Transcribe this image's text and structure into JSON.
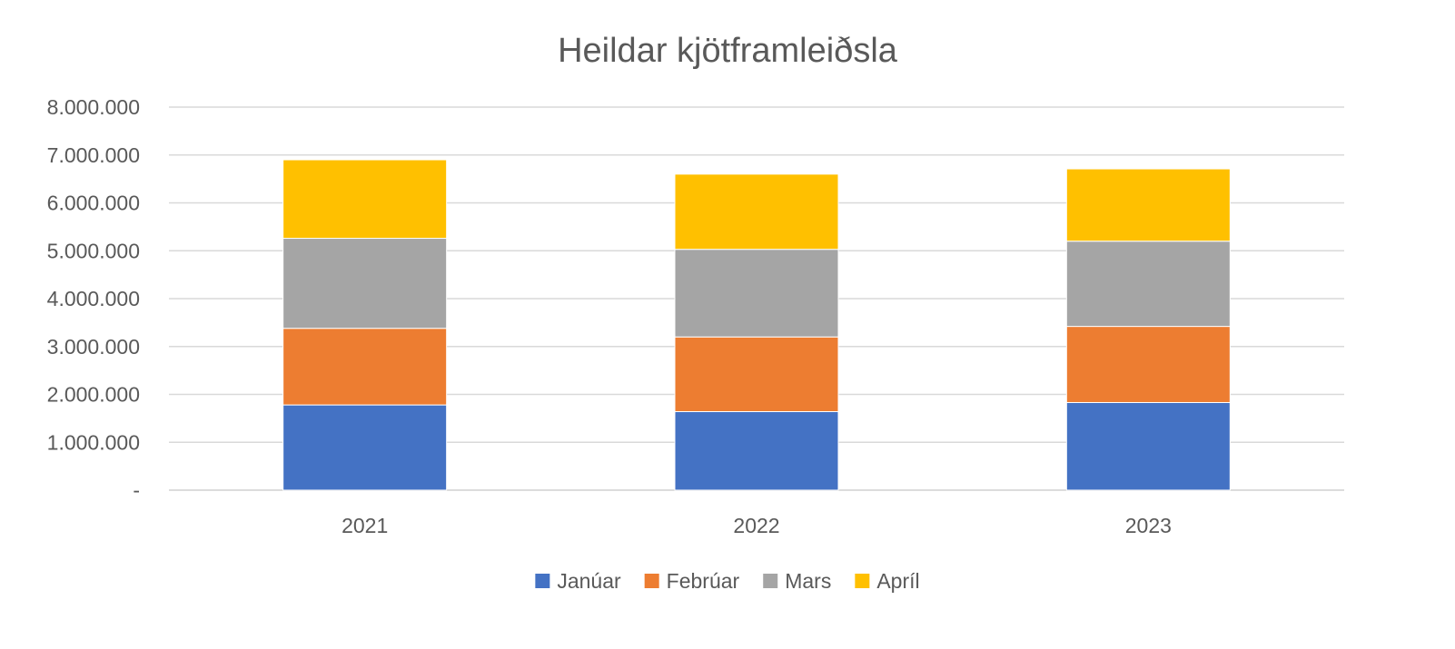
{
  "chart_data": {
    "type": "bar",
    "stacked": true,
    "title": "Heildar kjötframleiðsla",
    "xlabel": "",
    "ylabel": "",
    "categories": [
      "2021",
      "2022",
      "2023"
    ],
    "ylim": [
      0,
      8000000
    ],
    "yticks": [
      0,
      1000000,
      2000000,
      3000000,
      4000000,
      5000000,
      6000000,
      7000000,
      8000000
    ],
    "ytick_labels": [
      "-",
      "1.000.000",
      "2.000.000",
      "3.000.000",
      "4.000.000",
      "5.000.000",
      "6.000.000",
      "7.000.000",
      "8.000.000"
    ],
    "grid": true,
    "legend_position": "bottom",
    "series": [
      {
        "name": "Janúar",
        "color": "#4472C4",
        "values": [
          1780000,
          1640000,
          1830000
        ]
      },
      {
        "name": "Febrúar",
        "color": "#ED7D31",
        "values": [
          1600000,
          1560000,
          1590000
        ]
      },
      {
        "name": "Mars",
        "color": "#A5A5A5",
        "values": [
          1880000,
          1830000,
          1780000
        ]
      },
      {
        "name": "Apríl",
        "color": "#FFC000",
        "values": [
          1640000,
          1570000,
          1510000
        ]
      }
    ]
  }
}
